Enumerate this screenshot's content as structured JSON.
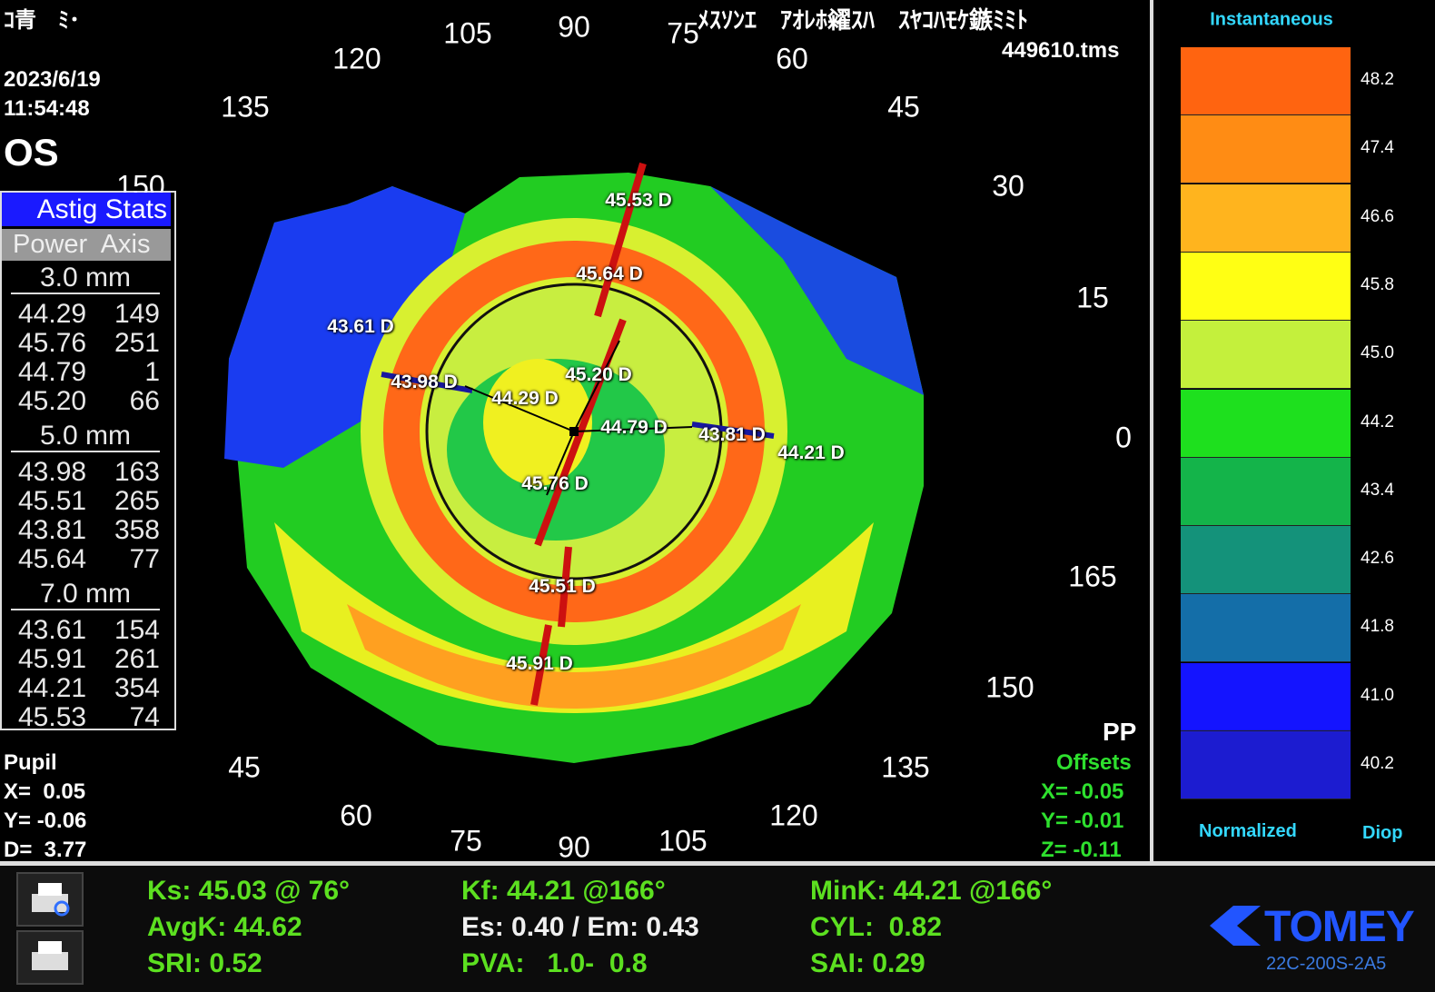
{
  "header": {
    "left_text": "ｺ青　ﾐ･",
    "right_text": "ﾒｽｿﾝｴ　ｱｵﾚﾎ糴ｽﾊ　ｽﾔｺﾊﾓｹ鏃ﾐﾐﾄ",
    "file": "449610.tms",
    "date": "2023/6/19",
    "time": "11:54:48",
    "eye": "OS"
  },
  "astig_stats": {
    "title": "Astig Stats",
    "columns": "Power  Axis",
    "groups": [
      {
        "label": "3.0 mm",
        "rows": [
          [
            "44.29",
            "149"
          ],
          [
            "45.76",
            "251"
          ],
          [
            "44.79",
            "1"
          ],
          [
            "45.20",
            "66"
          ]
        ]
      },
      {
        "label": "5.0 mm",
        "rows": [
          [
            "43.98",
            "163"
          ],
          [
            "45.51",
            "265"
          ],
          [
            "43.81",
            "358"
          ],
          [
            "45.64",
            "77"
          ]
        ]
      },
      {
        "label": "7.0 mm",
        "rows": [
          [
            "43.61",
            "154"
          ],
          [
            "45.91",
            "261"
          ],
          [
            "44.21",
            "354"
          ],
          [
            "45.53",
            "74"
          ]
        ]
      }
    ]
  },
  "degree_labels": [
    "150",
    "135",
    "120",
    "105",
    "90",
    "75",
    "60",
    "45",
    "30",
    "15",
    "0",
    "165",
    "150",
    "135",
    "120",
    "105",
    "90",
    "75",
    "60",
    "45"
  ],
  "map_labels": [
    "45.53 D",
    "45.64 D",
    "43.61 D",
    "43.98 D",
    "44.29 D",
    "45.20 D",
    "44.79 D",
    "43.81 D",
    "44.21 D",
    "45.76 D",
    "45.51 D",
    "45.91 D"
  ],
  "scale": {
    "title": "Instantaneous",
    "values": [
      "48.2",
      "47.4",
      "46.6",
      "45.8",
      "45.0",
      "44.2",
      "43.4",
      "42.6",
      "41.8",
      "41.0",
      "40.2"
    ],
    "colors": [
      "#ff6410",
      "#ff8c14",
      "#ffb41e",
      "#ffff14",
      "#c4f03c",
      "#1ee01e",
      "#14b44a",
      "#14927a",
      "#146ea8",
      "#1414ff",
      "#1c1cd0"
    ],
    "footer_left": "Normalized",
    "footer_right": "Diop"
  },
  "pupil": {
    "title": "Pupil",
    "rows": [
      "X=  0.05",
      "Y= -0.06",
      "D=  3.77"
    ]
  },
  "offsets": {
    "mode": "PP",
    "title": "Offsets",
    "rows": [
      "X= -0.05",
      "Y= -0.01",
      "Z= -0.11"
    ]
  },
  "indices": [
    [
      "Ks: 45.03 @ 76°",
      "AvgK: 44.62",
      "SRI: 0.52"
    ],
    [
      "Kf: 44.21 @166°",
      "Es: 0.40 / Em: 0.43",
      "PVA:   1.0-  0.8"
    ],
    [
      "MinK: 44.21 @166°",
      "CYL:  0.82",
      "SAI: 0.29"
    ]
  ],
  "brand": {
    "name": "TOMEY",
    "model": "22C-200S-2A5"
  }
}
